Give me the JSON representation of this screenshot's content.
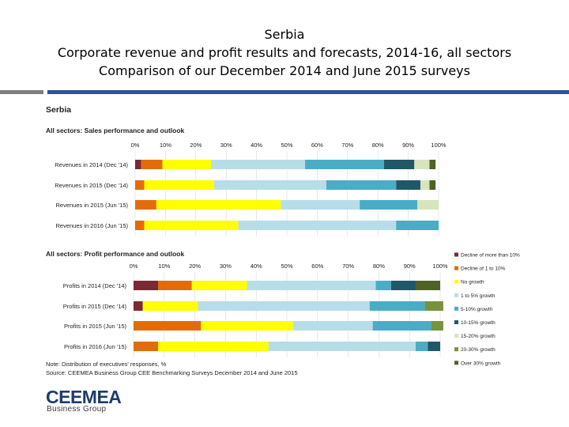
{
  "title": {
    "line1": "Serbia",
    "line2": "Corporate revenue and profit results and forecasts, 2014-16, all sectors",
    "line3": "Comparison of our December 2014 and June 2015 surveys"
  },
  "section_title": "Serbia",
  "note_line1": "Note: Distribution of executives' responses, %",
  "note_line2": "Source: CEEMEA Business Group CEE Benchmarking Surveys December 2014 and June 2015",
  "logo": {
    "main": "CEEMEA",
    "sub": "Business Group"
  },
  "colors": {
    "title_rule_grey": "#7f7f7f",
    "title_rule_blue": "#2e5597",
    "legend": [
      "#7b2a35",
      "#e36c0a",
      "#ffff00",
      "#b7dde8",
      "#4bacc6",
      "#215868",
      "#d7e4bd",
      "#77933c",
      "#4f6228"
    ]
  },
  "chart_data": [
    {
      "type": "bar",
      "orientation": "horizontal",
      "stacked": true,
      "title": "All sectors:  Sales performance and outlook",
      "xlim": [
        0,
        100
      ],
      "xticks": [
        "0%",
        "10%",
        "20%",
        "30%",
        "40%",
        "50%",
        "60%",
        "70%",
        "80%",
        "90%",
        "100%"
      ],
      "categories": [
        "Revenues in 2014 (Dec '14)",
        "Revenues in 2015 (Dec '14)",
        "Revenues in 2015 (Jun '15)",
        "Revenues in 2016 (Jun '15)"
      ],
      "series": [
        {
          "name": "Decline of more than 10%",
          "values": [
            2,
            0,
            0,
            0
          ]
        },
        {
          "name": "Decline of 1 to 10%",
          "values": [
            7,
            3,
            7,
            3
          ]
        },
        {
          "name": "No growth",
          "values": [
            16,
            23,
            41,
            31
          ]
        },
        {
          "name": "1 to 5% growth",
          "values": [
            31,
            37,
            26,
            52
          ]
        },
        {
          "name": "5-10% growth",
          "values": [
            26,
            23,
            19,
            14
          ]
        },
        {
          "name": "10-15% growth",
          "values": [
            10,
            8,
            0,
            0
          ]
        },
        {
          "name": "15-20% growth",
          "values": [
            5,
            3,
            7,
            0
          ]
        },
        {
          "name": "20-30% growth",
          "values": [
            0,
            0,
            0,
            0
          ]
        },
        {
          "name": "Over 30% growth",
          "values": [
            2,
            2,
            0,
            0
          ]
        }
      ]
    },
    {
      "type": "bar",
      "orientation": "horizontal",
      "stacked": true,
      "title": "All sectors: Profit performance and outlook",
      "xlim": [
        0,
        100
      ],
      "xticks": [
        "0%",
        "10%",
        "20%",
        "30%",
        "40%",
        "50%",
        "60%",
        "70%",
        "80%",
        "90%",
        "100%"
      ],
      "categories": [
        "Profits in 2014 (Dec '14)",
        "Profits in 2015 (Dec '14)",
        "Profits in 2015 (Jun '15)",
        "Profits in 2016 (Jun '15)"
      ],
      "series": [
        {
          "name": "Decline of more than 10%",
          "values": [
            8,
            3,
            0,
            0
          ]
        },
        {
          "name": "Decline of 1 to 10%",
          "values": [
            11,
            0,
            22,
            8
          ]
        },
        {
          "name": "No growth",
          "values": [
            18,
            18,
            30,
            36
          ]
        },
        {
          "name": "1 to 5% growth",
          "values": [
            42,
            56,
            26,
            48
          ]
        },
        {
          "name": "5-10% growth",
          "values": [
            5,
            18,
            19,
            4
          ]
        },
        {
          "name": "10-15% growth",
          "values": [
            8,
            0,
            0,
            4
          ]
        },
        {
          "name": "15-20% growth",
          "values": [
            0,
            0,
            0,
            0
          ]
        },
        {
          "name": "20-30% growth",
          "values": [
            0,
            6,
            4,
            0
          ]
        },
        {
          "name": "Over 30% growth",
          "values": [
            8,
            0,
            0,
            0
          ]
        }
      ],
      "legend": "right"
    }
  ]
}
